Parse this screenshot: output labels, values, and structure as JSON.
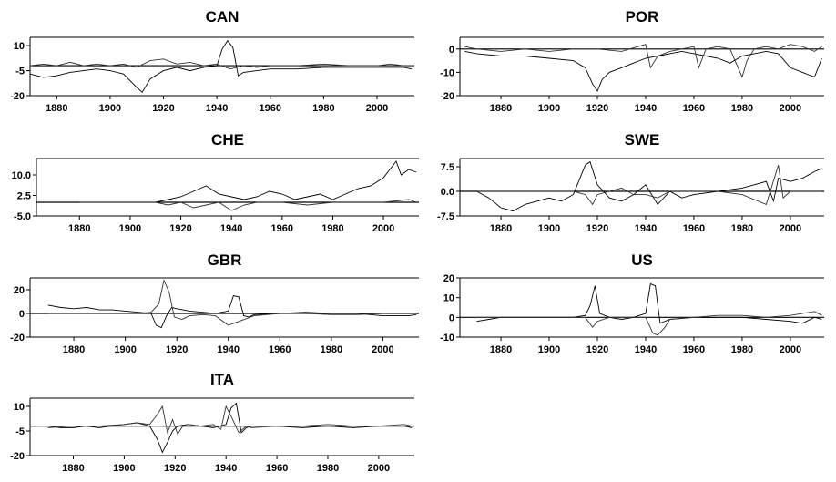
{
  "chart_data": [
    {
      "type": "line",
      "title": "CAN",
      "xlim": [
        1870,
        2014
      ],
      "ylim": [
        -20,
        15
      ],
      "xticks": [
        1880,
        1900,
        1920,
        1940,
        1960,
        1980,
        2000
      ],
      "yticks": [
        {
          "v": 10,
          "label": "10"
        },
        {
          "v": -5,
          "label": "-5"
        },
        {
          "v": -20,
          "label": "-20"
        }
      ],
      "zero": -2,
      "series": [
        {
          "x": [
            1870,
            1875,
            1880,
            1885,
            1890,
            1895,
            1900,
            1905,
            1910,
            1912,
            1915,
            1920,
            1925,
            1930,
            1935,
            1940,
            1942,
            1944,
            1946,
            1948,
            1950,
            1955,
            1960,
            1970,
            1980,
            1990,
            2000,
            2010,
            2013
          ],
          "y": [
            -7,
            -9,
            -8,
            -6,
            -5,
            -4,
            -5,
            -7,
            -15,
            -18,
            -10,
            -5,
            -3,
            -5,
            -3,
            -2,
            8,
            13,
            9,
            -8,
            -6,
            -5,
            -4,
            -4,
            -3,
            -3,
            -3,
            -3,
            -4
          ]
        },
        {
          "x": [
            1870,
            1875,
            1880,
            1885,
            1890,
            1895,
            1900,
            1905,
            1910,
            1915,
            1920,
            1925,
            1930,
            1935,
            1940,
            1945,
            1950,
            1955,
            1960,
            1970,
            1980,
            1990,
            2000,
            2005,
            2010,
            2013
          ],
          "y": [
            -2,
            -1,
            -2,
            0,
            -2,
            -1,
            -2,
            -1,
            -3,
            1,
            2,
            -1,
            0,
            -2,
            -1,
            -4,
            -2,
            -3,
            -2,
            -2,
            -1,
            -2,
            -2,
            -1,
            -2,
            -2
          ]
        }
      ]
    },
    {
      "type": "line",
      "title": "POR",
      "xlim": [
        1863,
        2014
      ],
      "ylim": [
        -20,
        5
      ],
      "xticks": [
        1880,
        1900,
        1920,
        1940,
        1960,
        1980,
        2000
      ],
      "yticks": [
        {
          "v": 0,
          "label": "0"
        },
        {
          "v": -10,
          "label": "-10"
        },
        {
          "v": -20,
          "label": "-20"
        }
      ],
      "zero": 0,
      "series": [
        {
          "x": [
            1865,
            1870,
            1880,
            1890,
            1900,
            1910,
            1915,
            1918,
            1920,
            1922,
            1925,
            1930,
            1935,
            1940,
            1945,
            1950,
            1955,
            1960,
            1965,
            1970,
            1975,
            1980,
            1985,
            1990,
            1995,
            2000,
            2005,
            2010,
            2013
          ],
          "y": [
            -1,
            -2,
            -3,
            -3,
            -4,
            -5,
            -8,
            -15,
            -18,
            -13,
            -10,
            -8,
            -6,
            -4,
            -3,
            -2,
            -1,
            -2,
            -3,
            -4,
            -6,
            -3,
            -2,
            -1,
            -2,
            -8,
            -10,
            -12,
            -4
          ]
        },
        {
          "x": [
            1865,
            1870,
            1880,
            1890,
            1900,
            1910,
            1920,
            1930,
            1940,
            1942,
            1945,
            1950,
            1955,
            1960,
            1962,
            1965,
            1970,
            1975,
            1980,
            1982,
            1985,
            1990,
            1995,
            2000,
            2005,
            2010,
            2013
          ],
          "y": [
            1,
            0,
            -1,
            0,
            -1,
            0,
            0,
            -1,
            2,
            -8,
            -3,
            -1,
            0,
            1,
            -8,
            0,
            1,
            0,
            -12,
            -5,
            0,
            1,
            0,
            2,
            1,
            -1,
            1
          ]
        }
      ]
    },
    {
      "type": "line",
      "title": "CHE",
      "xlim": [
        1863,
        2014
      ],
      "ylim": [
        -5,
        16
      ],
      "xticks": [
        1880,
        1900,
        1920,
        1940,
        1960,
        1980,
        2000
      ],
      "yticks": [
        {
          "v": 10,
          "label": "10.0"
        },
        {
          "v": 2.5,
          "label": "2.5"
        },
        {
          "v": -5,
          "label": "-5.0"
        }
      ],
      "zero": 0,
      "series": [
        {
          "x": [
            1880,
            1890,
            1900,
            1910,
            1915,
            1920,
            1925,
            1930,
            1935,
            1940,
            1945,
            1950,
            1955,
            1960,
            1965,
            1970,
            1975,
            1980,
            1985,
            1990,
            1995,
            2000,
            2005,
            2007,
            2010,
            2013
          ],
          "y": [
            0,
            0,
            0,
            0,
            1,
            2,
            4,
            6,
            3,
            2,
            1,
            2,
            4,
            3,
            1,
            2,
            3,
            1,
            3,
            5,
            6,
            9,
            15,
            10,
            12,
            11
          ]
        },
        {
          "x": [
            1880,
            1890,
            1900,
            1910,
            1915,
            1920,
            1925,
            1930,
            1935,
            1940,
            1945,
            1950,
            1960,
            1970,
            1980,
            1990,
            2000,
            2010,
            2013
          ],
          "y": [
            0,
            0,
            0,
            0,
            -1,
            0,
            -2,
            -1,
            0,
            -3,
            -1,
            0,
            0,
            -1,
            0,
            0,
            0,
            1,
            0
          ]
        }
      ]
    },
    {
      "type": "line",
      "title": "SWE",
      "xlim": [
        1863,
        2014
      ],
      "ylim": [
        -7.5,
        10
      ],
      "xticks": [
        1880,
        1900,
        1920,
        1940,
        1960,
        1980,
        2000
      ],
      "yticks": [
        {
          "v": 7.5,
          "label": "7.5"
        },
        {
          "v": 0,
          "label": "0.0"
        },
        {
          "v": -7.5,
          "label": "-7.5"
        }
      ],
      "zero": 0,
      "series": [
        {
          "x": [
            1870,
            1875,
            1880,
            1885,
            1890,
            1895,
            1900,
            1905,
            1910,
            1915,
            1917,
            1920,
            1925,
            1930,
            1935,
            1940,
            1945,
            1950,
            1955,
            1960,
            1970,
            1980,
            1985,
            1990,
            1993,
            1995,
            2000,
            2005,
            2010,
            2013
          ],
          "y": [
            0,
            -2,
            -5,
            -6,
            -4,
            -3,
            -2,
            -3,
            -1,
            8,
            9,
            2,
            -2,
            -3,
            -1,
            2,
            -4,
            0,
            -2,
            -1,
            0,
            1,
            2,
            3,
            -3,
            4,
            3,
            4,
            6,
            7
          ]
        },
        {
          "x": [
            1870,
            1880,
            1890,
            1900,
            1910,
            1915,
            1918,
            1920,
            1925,
            1930,
            1935,
            1940,
            1945,
            1950,
            1960,
            1970,
            1980,
            1990,
            1995,
            1997,
            2000,
            2005,
            2010,
            2013
          ],
          "y": [
            0,
            0,
            0,
            0,
            0,
            -1,
            -4,
            -1,
            0,
            1,
            -1,
            -1,
            -2,
            0,
            0,
            0,
            -1,
            -4,
            8,
            -2,
            0,
            0,
            0,
            0
          ]
        }
      ]
    },
    {
      "type": "line",
      "title": "GBR",
      "xlim": [
        1863,
        2014
      ],
      "ylim": [
        -20,
        30
      ],
      "xticks": [
        1880,
        1900,
        1920,
        1940,
        1960,
        1980,
        2000
      ],
      "yticks": [
        {
          "v": 20,
          "label": "20"
        },
        {
          "v": 0,
          "label": "0"
        },
        {
          "v": -20,
          "label": "-20"
        }
      ],
      "zero": 0,
      "series": [
        {
          "x": [
            1870,
            1875,
            1880,
            1885,
            1890,
            1895,
            1900,
            1905,
            1910,
            1912,
            1914,
            1916,
            1918,
            1920,
            1925,
            1930,
            1935,
            1940,
            1942,
            1944,
            1946,
            1948,
            1950,
            1960,
            1970,
            1980,
            1990,
            2000,
            2010,
            2013
          ],
          "y": [
            7,
            5,
            4,
            5,
            3,
            3,
            2,
            1,
            0,
            -10,
            -12,
            -2,
            5,
            4,
            2,
            1,
            0,
            2,
            15,
            14,
            -2,
            -3,
            -1,
            0,
            1,
            0,
            0,
            -2,
            -2,
            -1
          ]
        },
        {
          "x": [
            1870,
            1880,
            1890,
            1900,
            1905,
            1910,
            1913,
            1915,
            1917,
            1919,
            1922,
            1925,
            1930,
            1935,
            1940,
            1945,
            1950,
            1960,
            1970,
            1980,
            1990,
            2000,
            2010,
            2013
          ],
          "y": [
            0,
            0,
            0,
            0,
            0,
            1,
            8,
            28,
            18,
            -3,
            -5,
            -2,
            -1,
            -2,
            -10,
            -6,
            -2,
            0,
            0,
            -1,
            -1,
            0,
            0,
            0
          ]
        }
      ]
    },
    {
      "type": "line",
      "title": "US",
      "xlim": [
        1863,
        2014
      ],
      "ylim": [
        -10,
        20
      ],
      "xticks": [
        1880,
        1900,
        1920,
        1940,
        1960,
        1980,
        2000
      ],
      "yticks": [
        {
          "v": 20,
          "label": "20"
        },
        {
          "v": 10,
          "label": "10"
        },
        {
          "v": 0,
          "label": "0"
        },
        {
          "v": -10,
          "label": "-10"
        }
      ],
      "zero": 0,
      "series": [
        {
          "x": [
            1870,
            1875,
            1880,
            1890,
            1900,
            1910,
            1915,
            1917,
            1919,
            1921,
            1925,
            1930,
            1935,
            1940,
            1942,
            1944,
            1946,
            1950,
            1960,
            1970,
            1980,
            1990,
            2000,
            2005,
            2010,
            2013
          ],
          "y": [
            -2,
            -1,
            0,
            0,
            0,
            0,
            1,
            6,
            16,
            2,
            0,
            -1,
            0,
            2,
            17,
            16,
            -3,
            -1,
            0,
            0,
            0,
            -1,
            -2,
            -3,
            0,
            -1
          ]
        },
        {
          "x": [
            1870,
            1880,
            1890,
            1900,
            1910,
            1915,
            1918,
            1920,
            1925,
            1930,
            1935,
            1940,
            1943,
            1945,
            1948,
            1950,
            1960,
            1970,
            1980,
            1990,
            2000,
            2010,
            2013
          ],
          "y": [
            0,
            0,
            0,
            0,
            0,
            0,
            -5,
            -2,
            0,
            0,
            0,
            0,
            -8,
            -9,
            -5,
            -1,
            0,
            1,
            1,
            0,
            1,
            3,
            1
          ]
        }
      ]
    },
    {
      "type": "line",
      "title": "ITA",
      "xlim": [
        1863,
        2014
      ],
      "ylim": [
        -20,
        15
      ],
      "xticks": [
        1880,
        1900,
        1920,
        1940,
        1960,
        1980,
        2000
      ],
      "yticks": [
        {
          "v": 10,
          "label": "10"
        },
        {
          "v": -5,
          "label": "-5"
        },
        {
          "v": -20,
          "label": "-20"
        }
      ],
      "zero": -2,
      "series": [
        {
          "x": [
            1870,
            1875,
            1880,
            1885,
            1890,
            1895,
            1900,
            1905,
            1910,
            1913,
            1915,
            1917,
            1919,
            1921,
            1925,
            1930,
            1935,
            1940,
            1942,
            1944,
            1946,
            1948,
            1950,
            1960,
            1970,
            1980,
            1990,
            2000,
            2010,
            2013
          ],
          "y": [
            -2,
            -3,
            -3,
            -2,
            -3,
            -2,
            -1,
            0,
            -2,
            -10,
            -18,
            -12,
            -5,
            -2,
            -1,
            -2,
            -3,
            -1,
            9,
            12,
            -6,
            -3,
            -2,
            -2,
            -3,
            -2,
            -3,
            -2,
            -2,
            -3
          ]
        },
        {
          "x": [
            1870,
            1880,
            1890,
            1900,
            1905,
            1910,
            1913,
            1915,
            1917,
            1919,
            1921,
            1923,
            1925,
            1930,
            1935,
            1938,
            1940,
            1942,
            1945,
            1948,
            1950,
            1960,
            1970,
            1980,
            1990,
            2000,
            2010,
            2013
          ],
          "y": [
            -3,
            -2,
            -2,
            -1,
            0,
            -1,
            5,
            10,
            -6,
            2,
            -7,
            -2,
            -1,
            -2,
            -1,
            -4,
            10,
            4,
            -6,
            -2,
            -3,
            -2,
            -2,
            -1,
            -2,
            -2,
            -1,
            -2
          ]
        }
      ]
    }
  ]
}
